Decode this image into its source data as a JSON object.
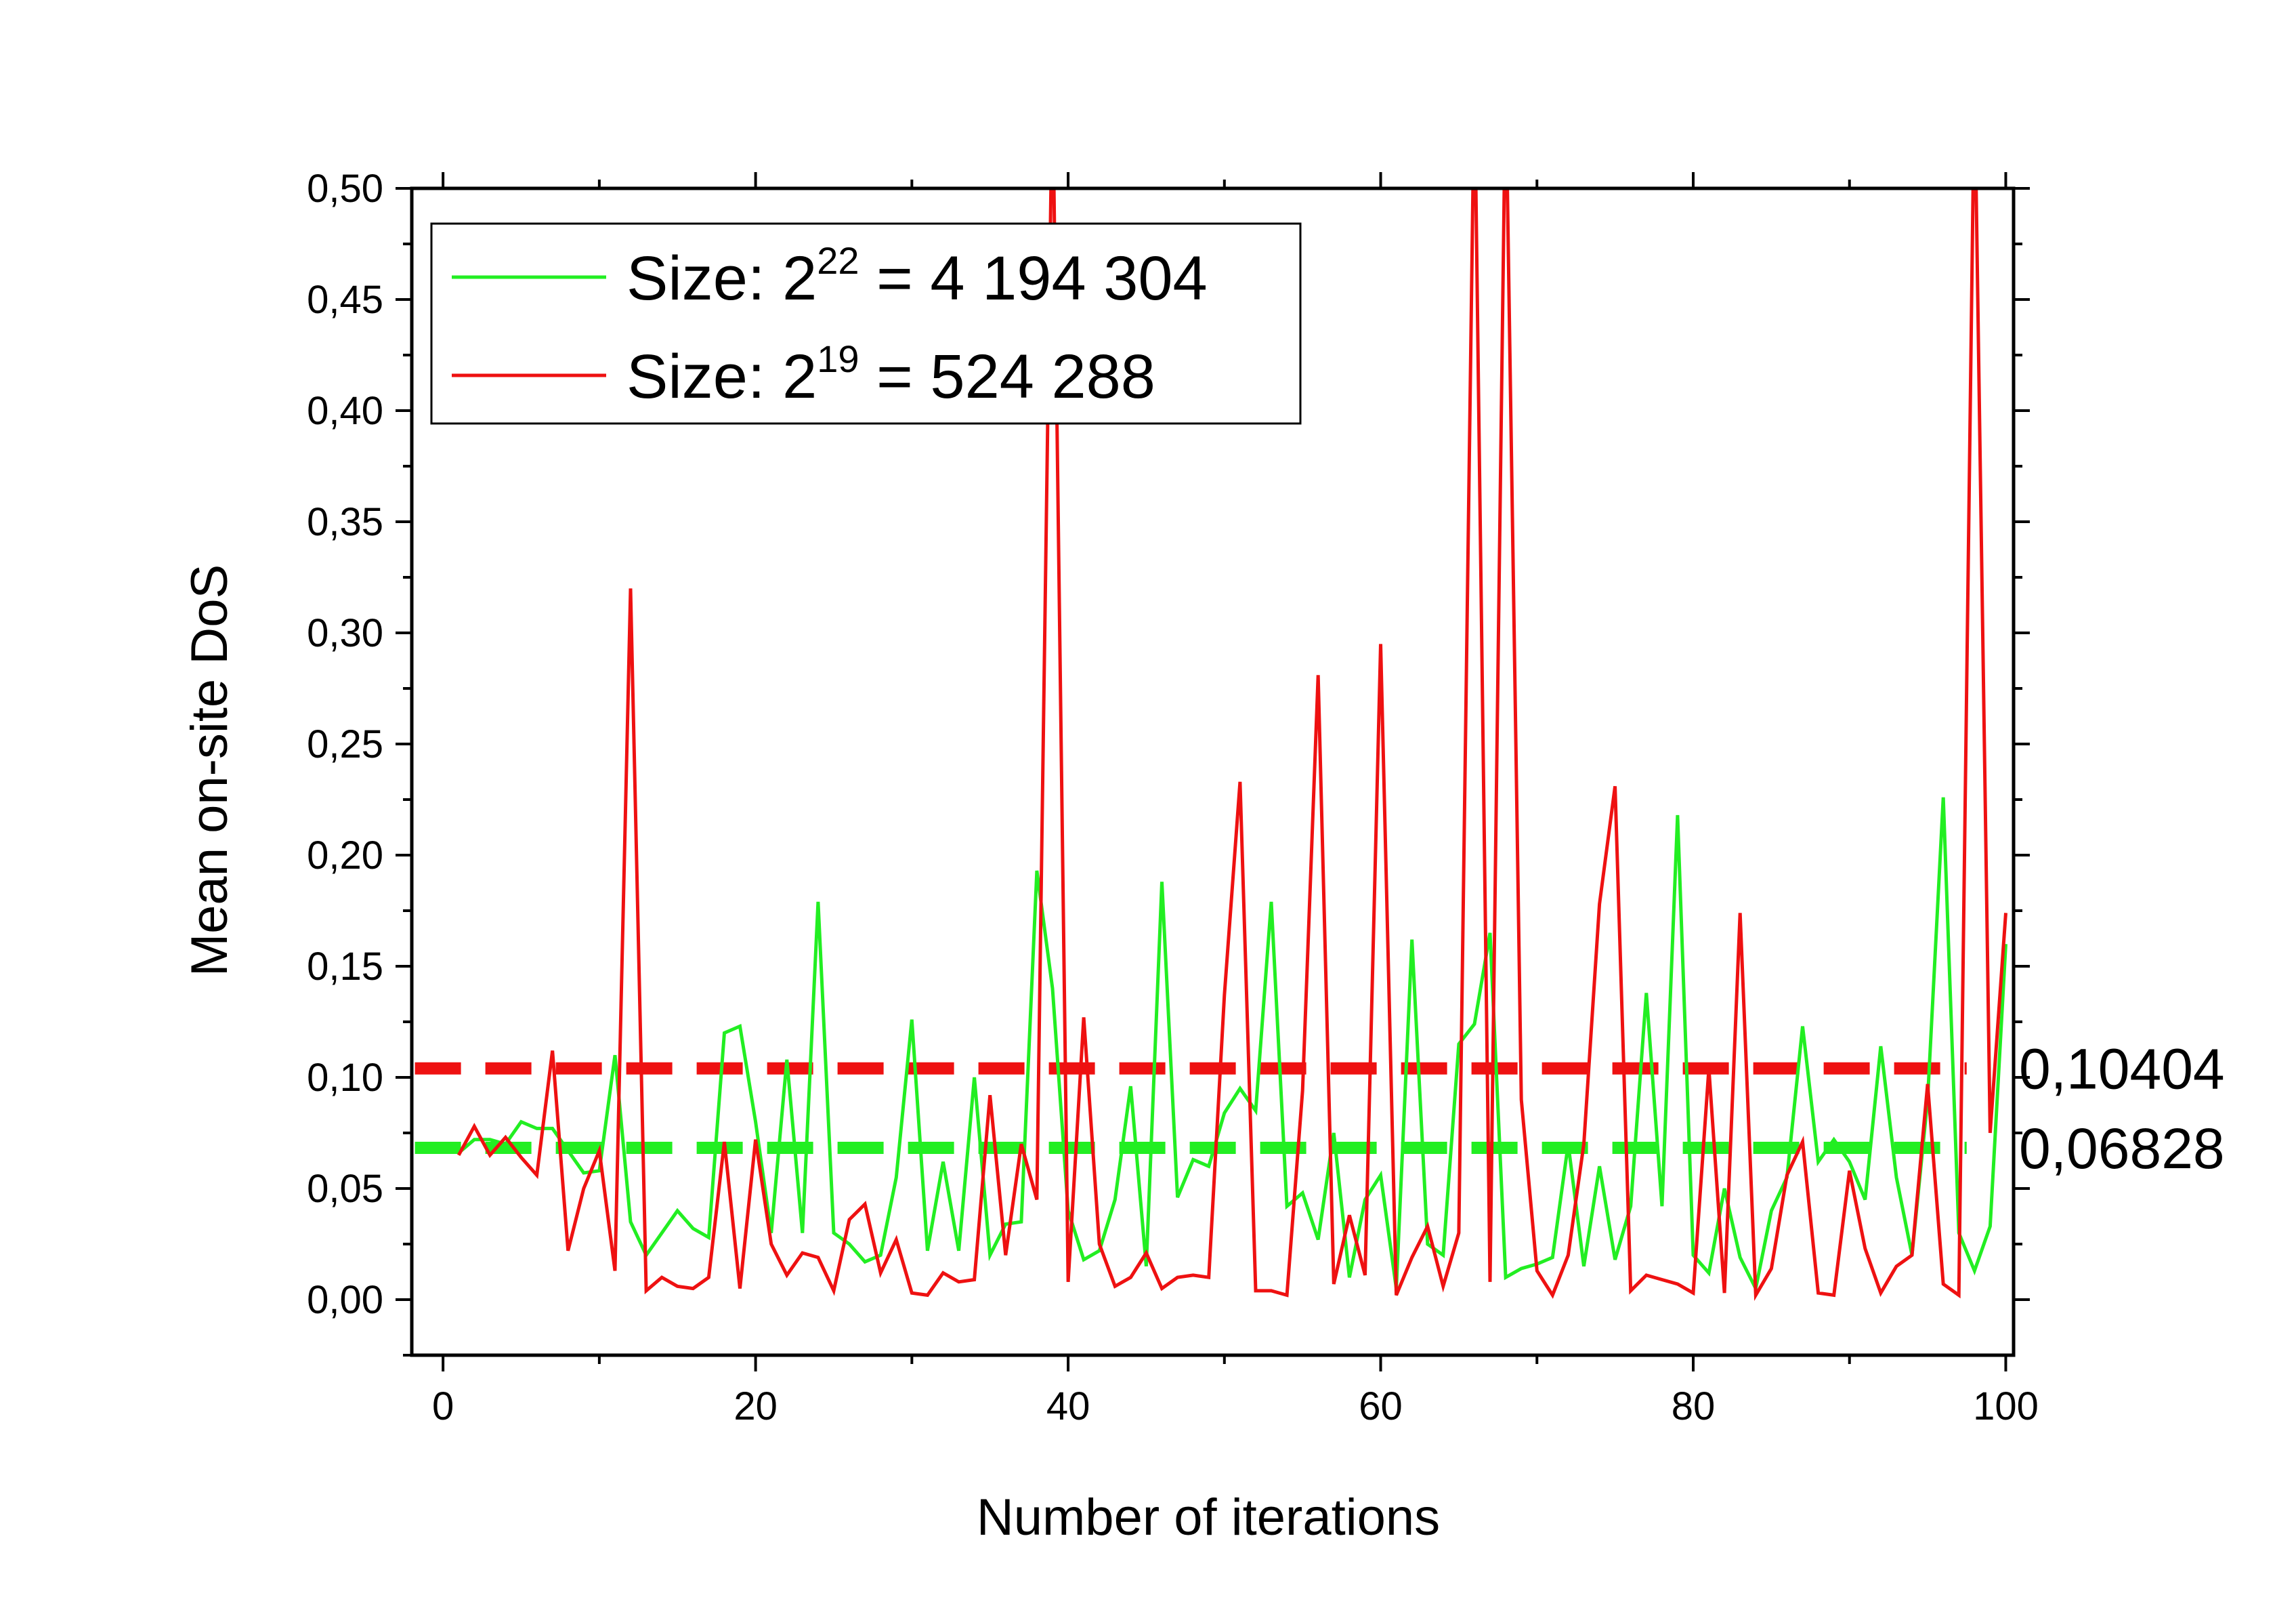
{
  "chart_data": {
    "type": "line",
    "xlabel": "Number of iterations",
    "ylabel": "Mean on-site DoS",
    "xlim": [
      -2,
      100.5
    ],
    "ylim": [
      -0.025,
      0.5
    ],
    "xticks": [
      "0",
      "20",
      "40",
      "60",
      "80",
      "100"
    ],
    "yticks": [
      "0,00",
      "0,05",
      "0,10",
      "0,15",
      "0,20",
      "0,25",
      "0,30",
      "0,35",
      "0,40",
      "0,45",
      "0,50"
    ],
    "legend_position": "top-left",
    "series": [
      {
        "name": "Size: 2^22 = 4 194 304",
        "label_base": "Size: 2",
        "label_exp": "22",
        "label_rest": " = 4 194 304",
        "color": "#22ee22",
        "x": [
          1,
          2,
          3,
          4,
          5,
          6,
          7,
          8,
          9,
          10,
          11,
          12,
          13,
          14,
          15,
          16,
          17,
          18,
          19,
          20,
          21,
          22,
          23,
          24,
          25,
          26,
          27,
          28,
          29,
          30,
          31,
          32,
          33,
          34,
          35,
          36,
          37,
          38,
          39,
          40,
          41,
          42,
          43,
          44,
          45,
          46,
          47,
          48,
          49,
          50,
          51,
          52,
          53,
          54,
          55,
          56,
          57,
          58,
          59,
          60,
          61,
          62,
          63,
          64,
          65,
          66,
          67,
          68,
          69,
          70,
          71,
          72,
          73,
          74,
          75,
          76,
          77,
          78,
          79,
          80,
          81,
          82,
          83,
          84,
          85,
          86,
          87,
          88,
          89,
          90,
          91,
          92,
          93,
          94,
          95,
          96,
          97,
          98,
          99,
          100
        ],
        "y": [
          0.066,
          0.072,
          0.072,
          0.07,
          0.08,
          0.077,
          0.077,
          0.067,
          0.057,
          0.058,
          0.11,
          0.035,
          0.02,
          0.03,
          0.04,
          0.032,
          0.028,
          0.12,
          0.123,
          0.08,
          0.03,
          0.108,
          0.03,
          0.179,
          0.03,
          0.025,
          0.017,
          0.02,
          0.055,
          0.126,
          0.022,
          0.062,
          0.022,
          0.1,
          0.02,
          0.034,
          0.035,
          0.193,
          0.14,
          0.04,
          0.018,
          0.022,
          0.045,
          0.096,
          0.015,
          0.188,
          0.046,
          0.063,
          0.06,
          0.084,
          0.095,
          0.085,
          0.179,
          0.042,
          0.048,
          0.027,
          0.075,
          0.01,
          0.045,
          0.056,
          0.005,
          0.162,
          0.025,
          0.02,
          0.115,
          0.124,
          0.165,
          0.01,
          0.014,
          0.016,
          0.019,
          0.07,
          0.015,
          0.06,
          0.018,
          0.042,
          0.138,
          0.042,
          0.218,
          0.02,
          0.012,
          0.05,
          0.019,
          0.005,
          0.04,
          0.055,
          0.123,
          0.062,
          0.072,
          0.062,
          0.045,
          0.114,
          0.055,
          0.02,
          0.09,
          0.226,
          0.03,
          0.013,
          0.033,
          0.16
        ]
      },
      {
        "name": "Size: 2^19 = 524 288",
        "label_base": "Size: 2",
        "label_exp": "19",
        "label_rest": " = 524 288",
        "color": "#ee1111",
        "x": [
          1,
          2,
          3,
          4,
          5,
          6,
          7,
          8,
          9,
          10,
          11,
          12,
          13,
          14,
          15,
          16,
          17,
          18,
          19,
          20,
          21,
          22,
          23,
          24,
          25,
          26,
          27,
          28,
          29,
          30,
          31,
          32,
          33,
          34,
          35,
          36,
          37,
          38,
          39,
          40,
          41,
          42,
          43,
          44,
          45,
          46,
          47,
          48,
          49,
          50,
          51,
          52,
          53,
          54,
          55,
          56,
          57,
          58,
          59,
          60,
          61,
          62,
          63,
          64,
          65,
          66,
          67,
          68,
          69,
          70,
          71,
          72,
          73,
          74,
          75,
          76,
          77,
          78,
          79,
          80,
          81,
          82,
          83,
          84,
          85,
          86,
          87,
          88,
          89,
          90,
          91,
          92,
          93,
          94,
          95,
          96,
          97,
          98,
          99,
          100
        ],
        "y": [
          0.065,
          0.078,
          0.065,
          0.073,
          0.064,
          0.056,
          0.112,
          0.022,
          0.05,
          0.067,
          0.013,
          0.32,
          0.004,
          0.01,
          0.006,
          0.005,
          0.01,
          0.071,
          0.005,
          0.072,
          0.025,
          0.011,
          0.021,
          0.019,
          0.004,
          0.036,
          0.043,
          0.012,
          0.027,
          0.003,
          0.002,
          0.012,
          0.008,
          0.009,
          0.092,
          0.02,
          0.07,
          0.045,
          0.55,
          0.008,
          0.127,
          0.025,
          0.006,
          0.01,
          0.021,
          0.005,
          0.01,
          0.011,
          0.01,
          0.137,
          0.233,
          0.004,
          0.004,
          0.002,
          0.094,
          0.281,
          0.007,
          0.038,
          0.011,
          0.295,
          0.002,
          0.019,
          0.033,
          0.006,
          0.03,
          0.55,
          0.008,
          0.55,
          0.09,
          0.013,
          0.002,
          0.02,
          0.07,
          0.178,
          0.231,
          0.004,
          0.011,
          0.009,
          0.007,
          0.003,
          0.104,
          0.003,
          0.174,
          0.002,
          0.014,
          0.056,
          0.071,
          0.003,
          0.002,
          0.058,
          0.023,
          0.003,
          0.015,
          0.02,
          0.097,
          0.007,
          0.002,
          0.55,
          0.075,
          0.174
        ]
      }
    ],
    "reference_lines": [
      {
        "value": 0.10404,
        "label": "0,10404",
        "color": "#ee1111"
      },
      {
        "value": 0.06828,
        "label": "0,06828",
        "color": "#22ee22"
      }
    ]
  }
}
